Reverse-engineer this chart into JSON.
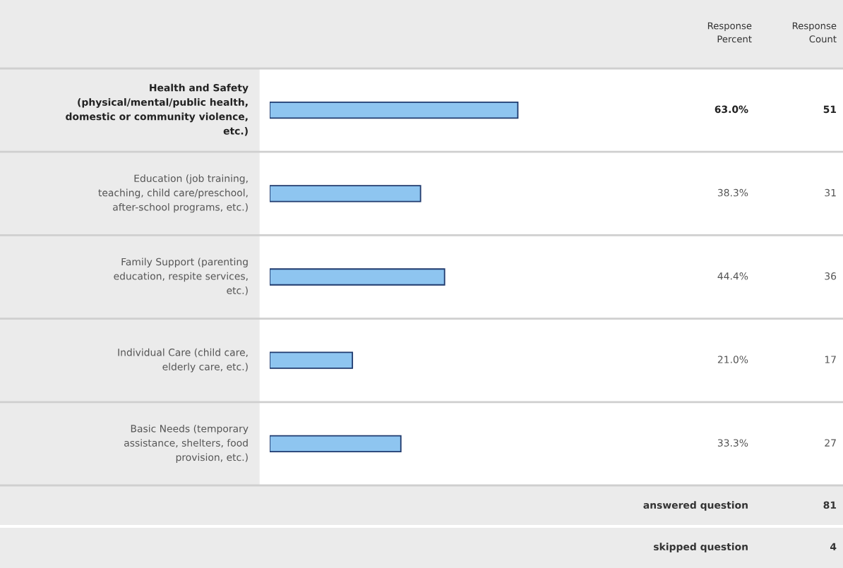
{
  "chart_data": {
    "type": "bar",
    "orientation": "horizontal",
    "categories": [
      "Health and Safety (physical/mental/public health, domestic or community violence, etc.)",
      "Education (job training, teaching, child care/preschool, after-school programs, etc.)",
      "Family Support (parenting education, respite services, etc.)",
      "Individual Care (child care, elderly care, etc.)",
      "Basic Needs (temporary assistance, shelters, food provision, etc.)"
    ],
    "values": [
      63.0,
      38.3,
      44.4,
      21.0,
      33.3
    ],
    "value_labels": [
      "63.0%",
      "38.3%",
      "44.4%",
      "21.0%",
      "33.3%"
    ],
    "color": "#8ec5f0",
    "annotations": [
      "Response Percent",
      "Response Count",
      "51",
      "31",
      "36",
      "17",
      "27",
      "answered question",
      "81",
      "skipped question",
      "4"
    ]
  }
}
